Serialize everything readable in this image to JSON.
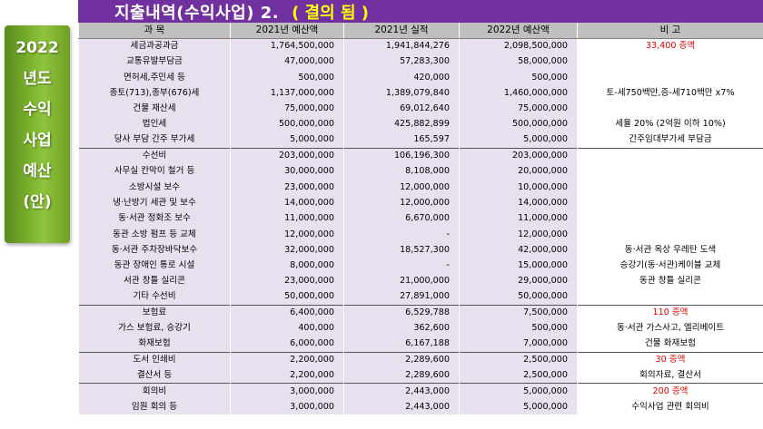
{
  "title": "지출내역(수익사업) 2.",
  "status": "( 결의 됨 )",
  "side_label": [
    "2022",
    "년도",
    "수익",
    "사업",
    "예산",
    "(안)"
  ],
  "headers": [
    "과  목",
    "2021년 예산액",
    "2021년 실적",
    "2022년 예산액",
    "비        고"
  ],
  "rows": [
    {
      "item": "세금과공과금",
      "b2021": "1,764,500,000",
      "a2021": "1,941,844,276",
      "b2022": "2,098,500,000",
      "note": "33,400 증액",
      "red": true,
      "group_start": false
    },
    {
      "item": "교통유발부담금",
      "b2021": "47,000,000",
      "a2021": "57,283,300",
      "b2022": "58,000,000",
      "note": "",
      "red": false,
      "group_start": false
    },
    {
      "item": "면허세,주민세 등",
      "b2021": "500,000",
      "a2021": "420,000",
      "b2022": "500,000",
      "note": "",
      "red": false,
      "group_start": false
    },
    {
      "item": "종토(713),종부(676)세",
      "b2021": "1,137,000,000",
      "a2021": "1,389,079,840",
      "b2022": "1,460,000,000",
      "note": "토-세750백만,증-세710백만 x7%",
      "red": false,
      "group_start": false
    },
    {
      "item": "건물 재산세",
      "b2021": "75,000,000",
      "a2021": "69,012,640",
      "b2022": "75,000,000",
      "note": "",
      "red": false,
      "group_start": false
    },
    {
      "item": "법인세",
      "b2021": "500,000,000",
      "a2021": "425,882,899",
      "b2022": "500,000,000",
      "note": "세율 20% (2억원 이하 10%)",
      "red": false,
      "group_start": false
    },
    {
      "item": "당사 부담 간주 부가세",
      "b2021": "5,000,000",
      "a2021": "165,597",
      "b2022": "5,000,000",
      "note": "간주임대부가세 부담금",
      "red": false,
      "group_start": false
    },
    {
      "item": "수선비",
      "b2021": "203,000,000",
      "a2021": "106,196,300",
      "b2022": "203,000,000",
      "note": "",
      "red": false,
      "group_start": true
    },
    {
      "item": "사무실 칸막이 철거 등",
      "b2021": "30,000,000",
      "a2021": "8,108,000",
      "b2022": "20,000,000",
      "note": "",
      "red": false,
      "group_start": false
    },
    {
      "item": "소방시설 보수",
      "b2021": "23,000,000",
      "a2021": "12,000,000",
      "b2022": "10,000,000",
      "note": "",
      "red": false,
      "group_start": false
    },
    {
      "item": "냉·난방기 세관 및 보수",
      "b2021": "14,000,000",
      "a2021": "12,000,000",
      "b2022": "14,000,000",
      "note": "",
      "red": false,
      "group_start": false
    },
    {
      "item": "동·서관 정화조 보수",
      "b2021": "11,000,000",
      "a2021": "6,670,000",
      "b2022": "11,000,000",
      "note": "",
      "red": false,
      "group_start": false
    },
    {
      "item": "동관 소방 펌프 등 교체",
      "b2021": "12,000,000",
      "a2021": "-",
      "b2022": "12,000,000",
      "note": "",
      "red": false,
      "group_start": false
    },
    {
      "item": "동·서관 주차장바닥보수",
      "b2021": "32,000,000",
      "a2021": "18,527,300",
      "b2022": "42,000,000",
      "note": "동·서관 옥상 우레탄 도색",
      "red": false,
      "group_start": false
    },
    {
      "item": "동관 장애인 통로 시설",
      "b2021": "8,000,000",
      "a2021": "-",
      "b2022": "15,000,000",
      "note": "승강기(동·서관)케이블 교체",
      "red": false,
      "group_start": false
    },
    {
      "item": "서관 창틀 실리콘",
      "b2021": "23,000,000",
      "a2021": "21,000,000",
      "b2022": "29,000,000",
      "note": "동관 창틀 실리콘",
      "red": false,
      "group_start": false
    },
    {
      "item": "기타 수선비",
      "b2021": "50,000,000",
      "a2021": "27,891,000",
      "b2022": "50,000,000",
      "note": "",
      "red": false,
      "group_start": false
    },
    {
      "item": "보험료",
      "b2021": "6,400,000",
      "a2021": "6,529,788",
      "b2022": "7,500,000",
      "note": "110 증액",
      "red": true,
      "group_start": true
    },
    {
      "item": "가스 보험료, 승강기",
      "b2021": "400,000",
      "a2021": "362,600",
      "b2022": "500,000",
      "note": "동·서관 가스사고, 엘리베이트",
      "red": false,
      "group_start": false
    },
    {
      "item": "화재보험",
      "b2021": "6,000,000",
      "a2021": "6,167,188",
      "b2022": "7,000,000",
      "note": "건물 화재보험",
      "red": false,
      "group_start": false
    },
    {
      "item": "도서 인쇄비",
      "b2021": "2,200,000",
      "a2021": "2,289,600",
      "b2022": "2,500,000",
      "note": "30 증액",
      "red": true,
      "group_start": true
    },
    {
      "item": "결산서 등",
      "b2021": "2,200,000",
      "a2021": "2,289,600",
      "b2022": "2,500,000",
      "note": "회의자료, 결산서",
      "red": false,
      "group_start": false
    },
    {
      "item": "회의비",
      "b2021": "3,000,000",
      "a2021": "2,443,000",
      "b2022": "5,000,000",
      "note": "200 증액",
      "red": true,
      "group_start": true
    },
    {
      "item": "임원 회의 등",
      "b2021": "3,000,000",
      "a2021": "2,443,000",
      "b2022": "5,000,000",
      "note": "수익사업 관련 회의비",
      "red": false,
      "group_start": false
    }
  ]
}
